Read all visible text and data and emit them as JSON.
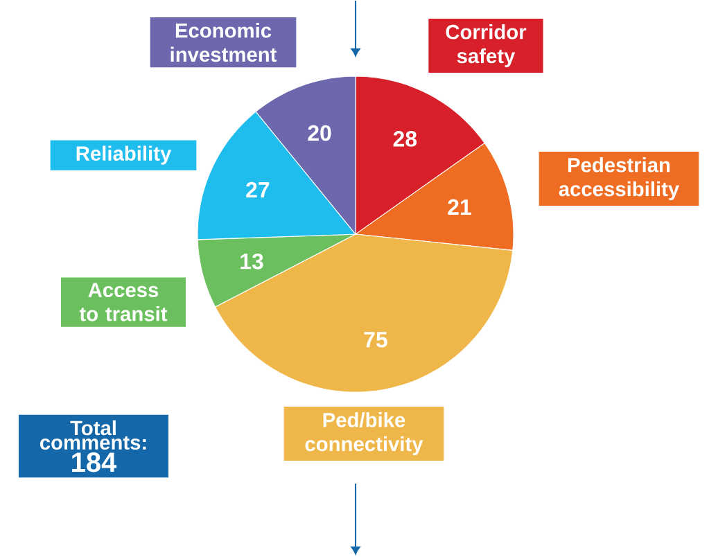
{
  "chart_data": {
    "type": "pie",
    "categories": [
      "Corridor safety",
      "Pedestrian accessibility",
      "Ped/bike connectivity",
      "Access to transit",
      "Reliability",
      "Economic investment"
    ],
    "values": [
      28,
      21,
      75,
      13,
      27,
      20
    ],
    "colors": [
      "#d7202a",
      "#ef6c23",
      "#efb74a",
      "#6cbf5e",
      "#1fbdee",
      "#6d68ad"
    ],
    "data_labels": true,
    "annotations": [
      "Total comments:",
      "184"
    ]
  }
}
